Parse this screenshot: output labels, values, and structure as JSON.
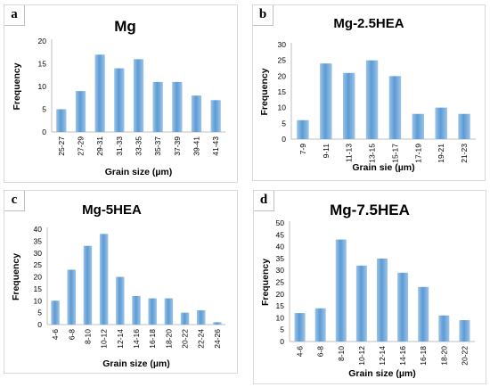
{
  "colors": {
    "bar": "#5b9bd5",
    "bar_light": "#9dc3e6",
    "axis": "#bfbfbf",
    "text": "#000000"
  },
  "chart_data": [
    {
      "panel_label": "a",
      "type": "bar",
      "title": "Mg",
      "xlabel": "Grain size (µm)",
      "ylabel": "Frequency",
      "categories": [
        "25-27",
        "27-29",
        "29-31",
        "31-33",
        "33-35",
        "35-37",
        "37-39",
        "39-41",
        "41-43"
      ],
      "values": [
        5,
        9,
        17,
        14,
        16,
        11,
        11,
        8,
        7
      ],
      "ylim": [
        0,
        20
      ],
      "yticks": [
        0,
        5,
        10,
        15,
        20
      ],
      "grid": false,
      "legend": "none"
    },
    {
      "panel_label": "b",
      "type": "bar",
      "title": "Mg-2.5HEA",
      "xlabel": "Grain sie (µm)",
      "ylabel": "Frequency",
      "categories": [
        "7-9",
        "9-11",
        "11-13",
        "13-15",
        "15-17",
        "17-19",
        "19-21",
        "21-23"
      ],
      "values": [
        6,
        24,
        21,
        25,
        20,
        8,
        10,
        8
      ],
      "ylim": [
        0,
        30
      ],
      "yticks": [
        0,
        5,
        10,
        15,
        20,
        25,
        30
      ],
      "grid": false,
      "legend": "none"
    },
    {
      "panel_label": "c",
      "type": "bar",
      "title": "Mg-5HEA",
      "xlabel": "Grain size (µm)",
      "ylabel": "Frequency",
      "categories": [
        "4-6",
        "6-8",
        "8-10",
        "10-12",
        "12-14",
        "14-16",
        "16-18",
        "18-20",
        "20-22",
        "22-24",
        "24-26"
      ],
      "values": [
        10,
        23,
        33,
        38,
        20,
        12,
        11,
        11,
        5,
        6,
        1
      ],
      "ylim": [
        0,
        40
      ],
      "yticks": [
        0,
        5,
        10,
        15,
        20,
        25,
        30,
        35,
        40
      ],
      "grid": false,
      "legend": "none"
    },
    {
      "panel_label": "d",
      "type": "bar",
      "title": "Mg-7.5HEA",
      "xlabel": "Grain size (µm)",
      "ylabel": "Frequency",
      "categories": [
        "4-6",
        "6-8",
        "8-10",
        "10-12",
        "12-14",
        "14-16",
        "16-18",
        "18-20",
        "20-22"
      ],
      "values": [
        12,
        14,
        43,
        32,
        35,
        29,
        23,
        11,
        9
      ],
      "ylim": [
        0,
        50
      ],
      "yticks": [
        0,
        5,
        10,
        15,
        20,
        25,
        30,
        35,
        40,
        45,
        50
      ],
      "grid": false,
      "legend": "none"
    }
  ]
}
